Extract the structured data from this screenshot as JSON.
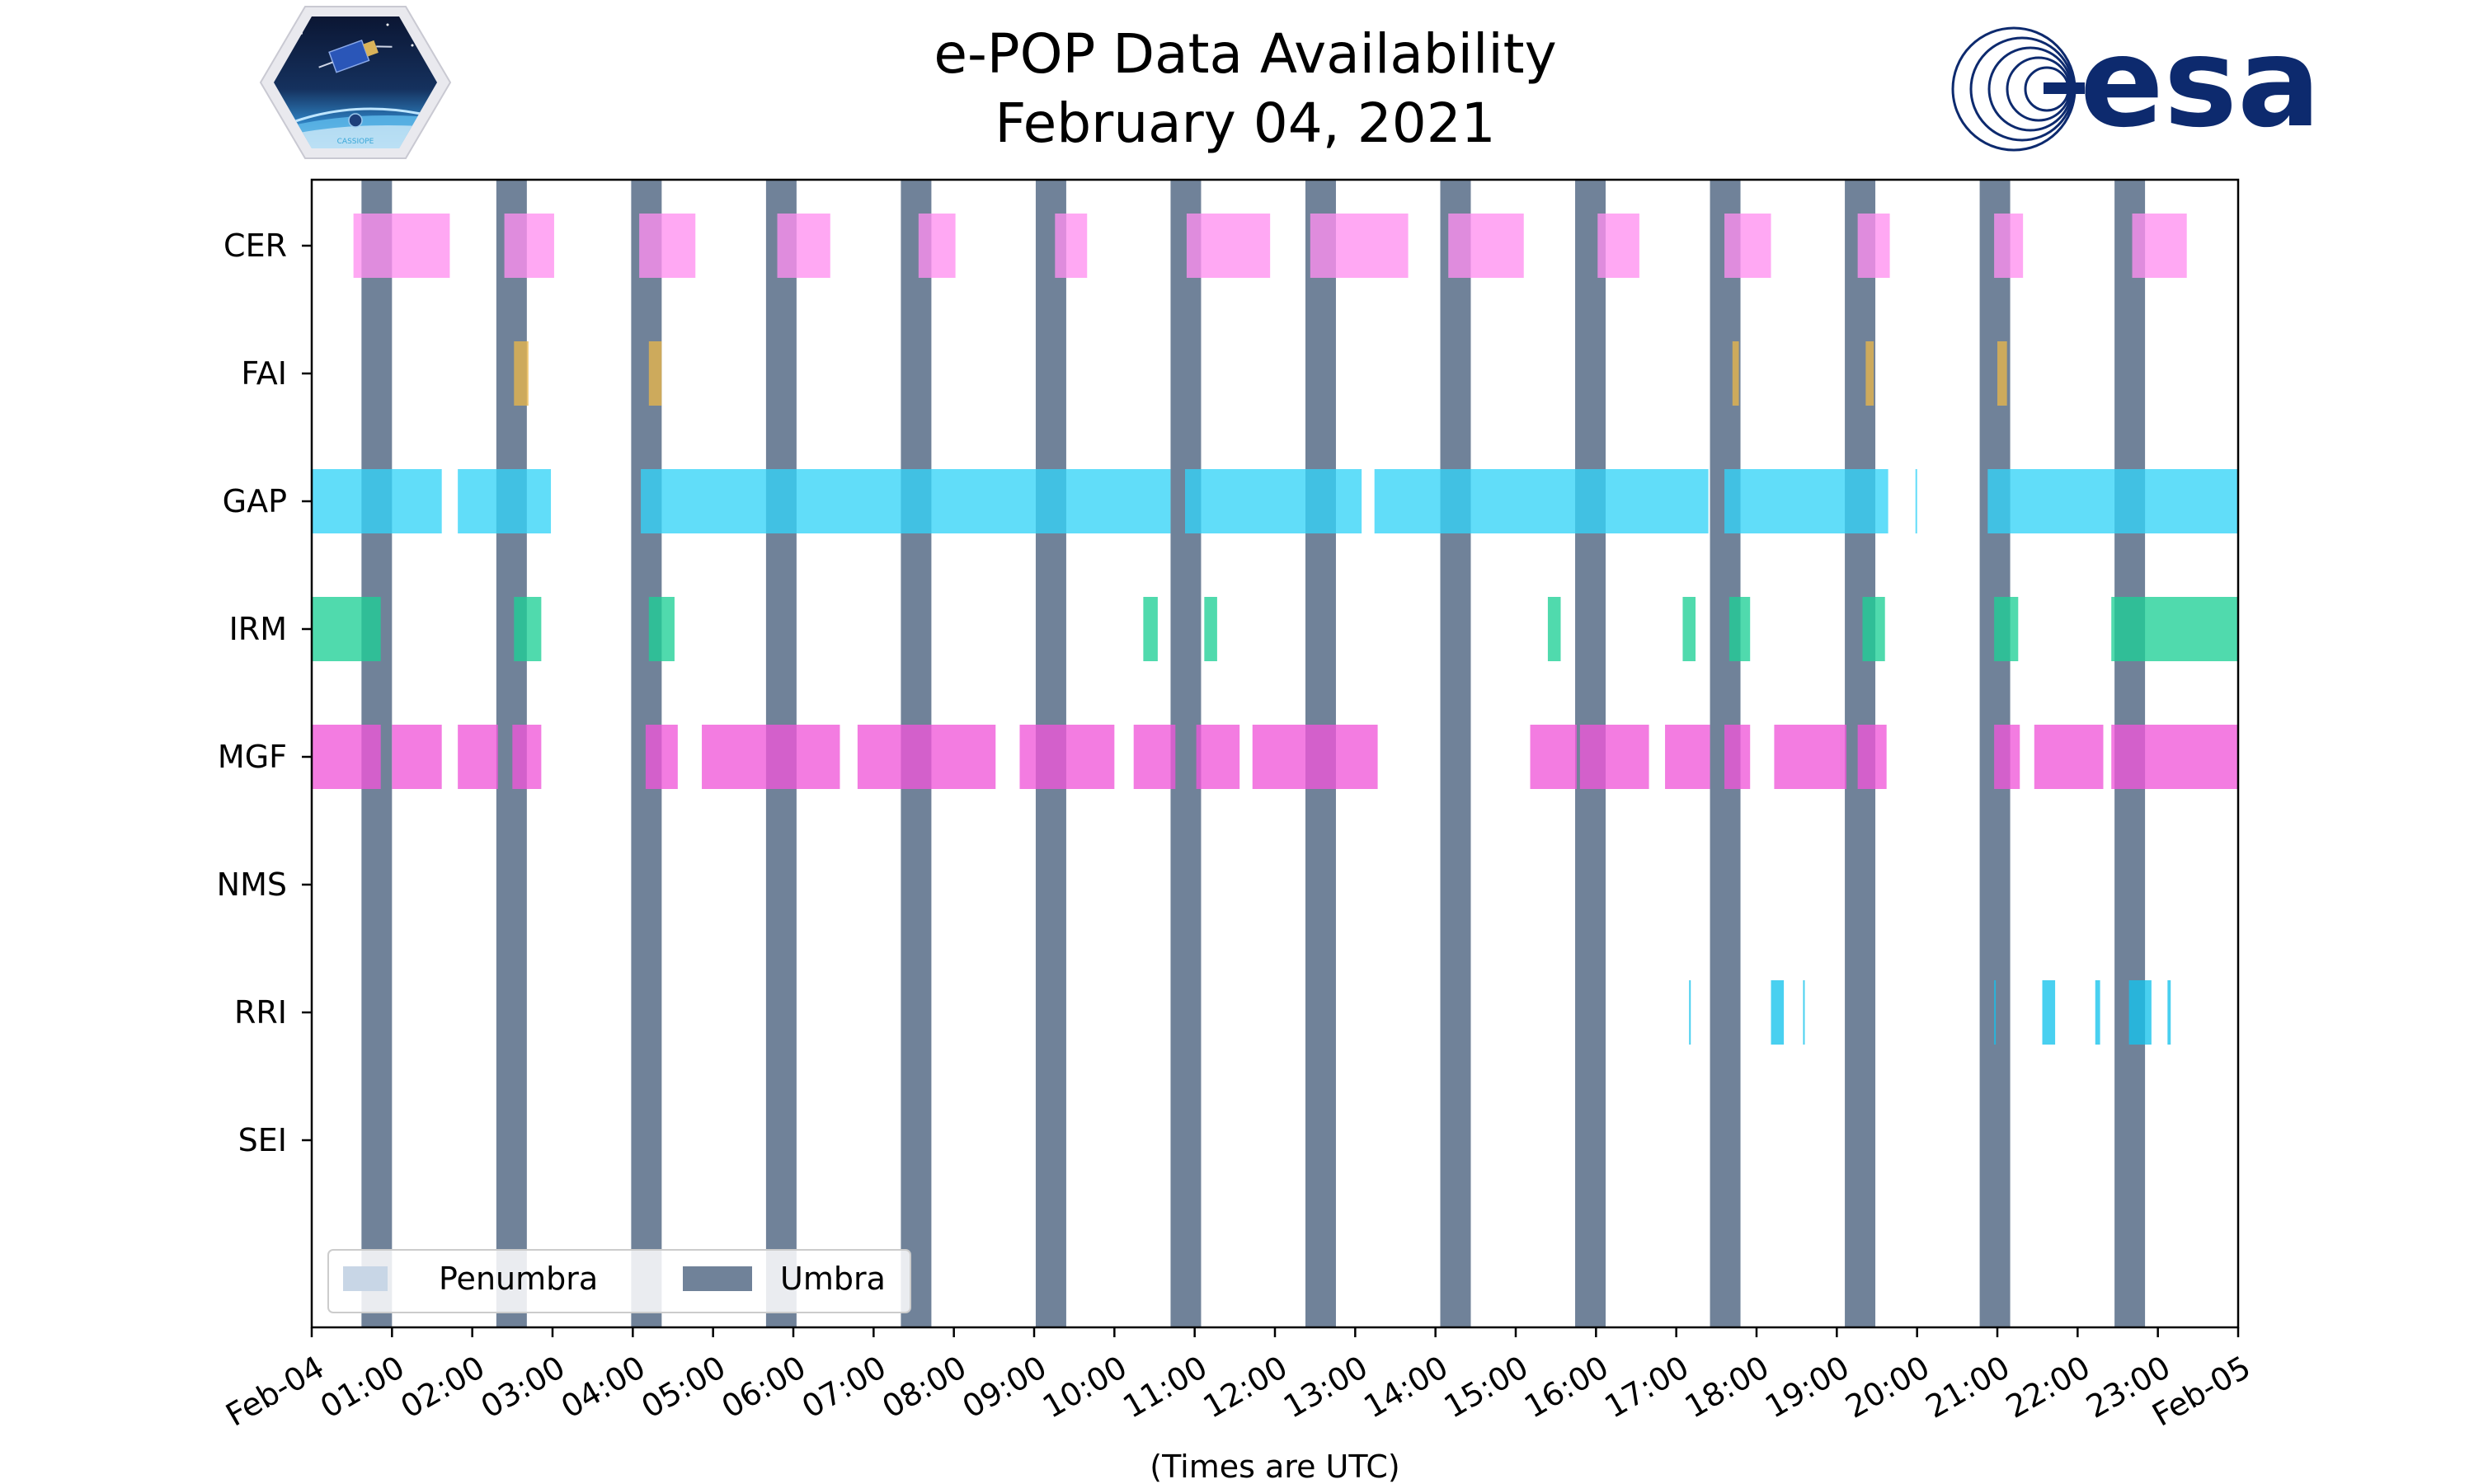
{
  "title": {
    "line1": "e-POP Data Availability",
    "line2": "February 04, 2021"
  },
  "logos": {
    "left": {
      "icon": "cassiope-mission-badge-icon",
      "text": "CASSIOPE"
    },
    "right": {
      "icon": "esa-logo-icon",
      "text": "esa",
      "color": "#0d2a6e"
    }
  },
  "chart_data": {
    "type": "timeline",
    "xlabel": "(Times are UTC)",
    "xlim": [
      0,
      24
    ],
    "x_unit": "hours UTC",
    "x_tick_labels": [
      "Feb-04",
      "01:00",
      "02:00",
      "03:00",
      "04:00",
      "05:00",
      "06:00",
      "07:00",
      "08:00",
      "09:00",
      "10:00",
      "11:00",
      "12:00",
      "13:00",
      "14:00",
      "15:00",
      "16:00",
      "17:00",
      "18:00",
      "19:00",
      "20:00",
      "21:00",
      "22:00",
      "23:00",
      "Feb-05"
    ],
    "categories": [
      "CER",
      "FAI",
      "GAP",
      "IRM",
      "MGF",
      "NMS",
      "RRI",
      "SEI"
    ],
    "legend": {
      "placement": "lower-left",
      "entries": [
        {
          "name": "Penumbra",
          "color": "#c8d6e6"
        },
        {
          "name": "Umbra",
          "color": "#708299"
        }
      ]
    },
    "umbra": [
      [
        0.62,
        1.0
      ],
      [
        2.3,
        2.68
      ],
      [
        3.98,
        4.36
      ],
      [
        5.66,
        6.04
      ],
      [
        7.34,
        7.72
      ],
      [
        9.02,
        9.4
      ],
      [
        10.7,
        11.08
      ],
      [
        12.38,
        12.76
      ],
      [
        14.06,
        14.44
      ],
      [
        15.74,
        16.12
      ],
      [
        17.42,
        17.8
      ],
      [
        19.1,
        19.48
      ],
      [
        20.78,
        21.16
      ],
      [
        22.46,
        22.84
      ]
    ],
    "series": [
      {
        "name": "CER",
        "color": "#ff8ff0",
        "intervals": [
          [
            0.52,
            1.72
          ],
          [
            2.4,
            3.02
          ],
          [
            4.08,
            4.78
          ],
          [
            5.8,
            6.46
          ],
          [
            7.56,
            8.02
          ],
          [
            9.26,
            9.66
          ],
          [
            10.9,
            11.94
          ],
          [
            12.44,
            13.66
          ],
          [
            14.16,
            15.1
          ],
          [
            16.02,
            16.54
          ],
          [
            17.6,
            18.18
          ],
          [
            19.26,
            19.66
          ],
          [
            20.96,
            21.32
          ],
          [
            22.68,
            23.36
          ]
        ]
      },
      {
        "name": "FAI",
        "color": "#e8b64a",
        "intervals": [
          [
            2.52,
            2.7
          ],
          [
            4.2,
            4.36
          ],
          [
            17.7,
            17.78
          ],
          [
            19.36,
            19.46
          ],
          [
            21.0,
            21.12
          ]
        ]
      },
      {
        "name": "GAP",
        "color": "#35d3f7",
        "intervals": [
          [
            0,
            1.62
          ],
          [
            1.82,
            2.98
          ],
          [
            4.1,
            10.7
          ],
          [
            10.88,
            13.08
          ],
          [
            13.24,
            17.4
          ],
          [
            17.6,
            19.64
          ],
          [
            19.98,
            20.0
          ],
          [
            20.88,
            24.0
          ]
        ]
      },
      {
        "name": "IRM",
        "color": "#1fcf96",
        "intervals": [
          [
            0,
            0.86
          ],
          [
            2.52,
            2.86
          ],
          [
            4.2,
            4.52
          ],
          [
            10.36,
            10.54
          ],
          [
            11.12,
            11.28
          ],
          [
            15.4,
            15.56
          ],
          [
            17.08,
            17.24
          ],
          [
            17.66,
            17.92
          ],
          [
            19.32,
            19.6
          ],
          [
            20.96,
            21.26
          ],
          [
            22.42,
            24.0
          ]
        ]
      },
      {
        "name": "MGF",
        "color": "#ef57d8",
        "intervals": [
          [
            0,
            0.86
          ],
          [
            1.0,
            1.62
          ],
          [
            1.82,
            2.32
          ],
          [
            2.5,
            2.86
          ],
          [
            4.16,
            4.56
          ],
          [
            4.86,
            6.58
          ],
          [
            6.8,
            8.52
          ],
          [
            8.82,
            10.0
          ],
          [
            10.24,
            10.76
          ],
          [
            11.02,
            11.56
          ],
          [
            11.72,
            13.28
          ],
          [
            15.18,
            15.76
          ],
          [
            15.8,
            16.66
          ],
          [
            16.86,
            17.42
          ],
          [
            17.6,
            17.92
          ],
          [
            18.22,
            19.12
          ],
          [
            19.26,
            19.62
          ],
          [
            20.96,
            21.28
          ],
          [
            21.46,
            22.32
          ],
          [
            22.42,
            24.0
          ]
        ]
      },
      {
        "name": "NMS",
        "color": "#35d3f7",
        "intervals": []
      },
      {
        "name": "RRI",
        "color": "#16c3ec",
        "intervals": [
          [
            17.16,
            17.18
          ],
          [
            18.18,
            18.34
          ],
          [
            18.58,
            18.6
          ],
          [
            20.96,
            20.98
          ],
          [
            21.56,
            21.72
          ],
          [
            22.22,
            22.28
          ],
          [
            22.64,
            22.92
          ],
          [
            23.12,
            23.16
          ]
        ]
      },
      {
        "name": "SEI",
        "color": "#35d3f7",
        "intervals": []
      }
    ]
  }
}
